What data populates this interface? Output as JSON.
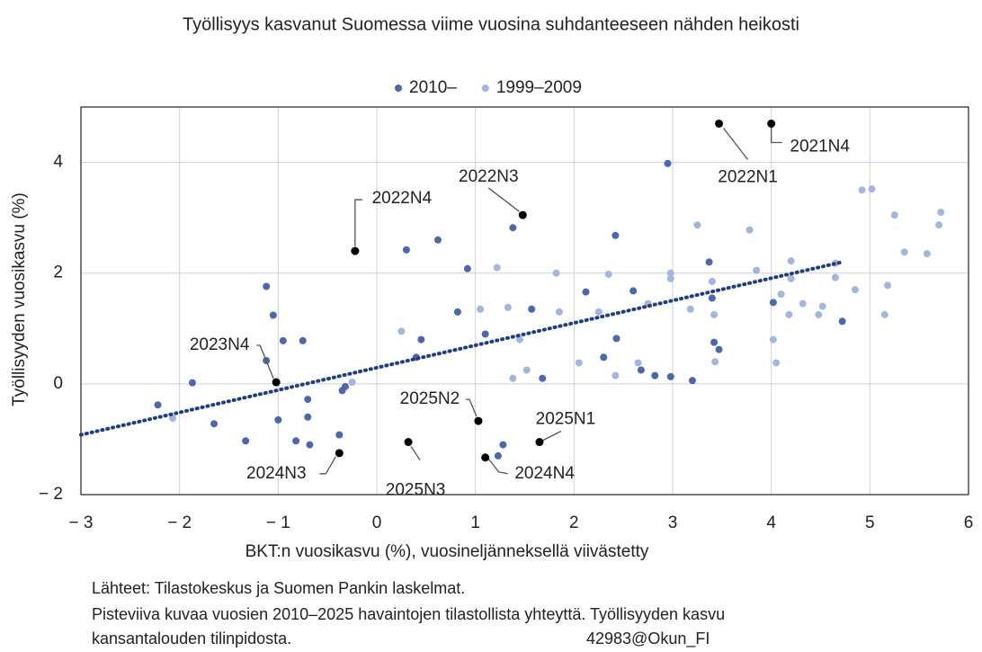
{
  "chart_data": {
    "type": "scatter",
    "title": "Työllisyys kasvanut Suomessa viime vuosina suhdanteeseen nähden heikosti",
    "xlabel": "BKT:n vuosikasvu (%), vuosineljänneksellä viivästetty",
    "ylabel": "Työllisyyden vuosikasvu (%)",
    "xlim": [
      -3,
      6
    ],
    "ylim": [
      -2,
      5
    ],
    "xticks": [
      {
        "value": -3,
        "label": "− 3"
      },
      {
        "value": -2,
        "label": "− 2"
      },
      {
        "value": -1,
        "label": "− 1"
      },
      0,
      1,
      2,
      3,
      4,
      5,
      6
    ],
    "yticks": [
      {
        "value": -2,
        "label": "− 2"
      },
      0,
      2,
      4
    ],
    "grid": true,
    "legend": "top",
    "series": [
      {
        "name": "2010–",
        "color": "#4d68aa",
        "x": [
          -2.22,
          -1.87,
          -1.65,
          -1.33,
          -1.12,
          -1.12,
          -1.05,
          -1.0,
          -0.95,
          -0.82,
          -0.75,
          -0.7,
          -0.7,
          -0.68,
          -0.38,
          -0.35,
          -0.32,
          0.3,
          0.4,
          0.45,
          0.62,
          0.82,
          0.92,
          1.1,
          1.23,
          1.28,
          1.38,
          1.57,
          1.68,
          2.12,
          2.3,
          2.42,
          2.43,
          2.6,
          2.68,
          2.82,
          2.95,
          2.98,
          3.2,
          3.37,
          3.4,
          3.42,
          3.47,
          4.02,
          4.72
        ],
        "values": [
          -0.38,
          0.02,
          -0.72,
          -1.03,
          1.76,
          0.42,
          1.24,
          -0.65,
          0.78,
          -1.03,
          0.78,
          -0.28,
          -0.6,
          -1.1,
          -0.92,
          -0.12,
          -0.05,
          2.42,
          0.48,
          0.8,
          2.6,
          1.3,
          2.08,
          0.9,
          -1.3,
          -1.1,
          2.82,
          1.35,
          0.1,
          1.66,
          0.48,
          2.68,
          0.82,
          1.68,
          0.25,
          0.15,
          3.98,
          0.13,
          0.06,
          2.2,
          1.55,
          0.75,
          0.62,
          1.47,
          1.13
        ]
      },
      {
        "name": "1999–2009",
        "color": "#a3b6de",
        "x": [
          -2.07,
          -0.25,
          0.25,
          1.05,
          1.22,
          1.33,
          1.45,
          1.38,
          1.52,
          1.82,
          1.85,
          2.05,
          2.25,
          2.35,
          2.42,
          2.65,
          2.75,
          2.98,
          2.98,
          3.25,
          3.18,
          3.4,
          3.42,
          3.43,
          3.78,
          3.85,
          4.02,
          4.05,
          4.1,
          4.18,
          4.2,
          4.2,
          4.32,
          4.48,
          4.52,
          4.65,
          4.65,
          4.85,
          4.92,
          5.02,
          5.15,
          5.18,
          5.25,
          5.35,
          5.58,
          5.7,
          5.72
        ],
        "values": [
          -0.62,
          0.03,
          0.95,
          1.35,
          2.1,
          1.38,
          0.8,
          0.1,
          0.25,
          2.0,
          1.3,
          0.38,
          1.3,
          1.98,
          0.15,
          0.38,
          1.45,
          1.9,
          2.0,
          2.87,
          1.35,
          1.85,
          1.25,
          0.4,
          2.78,
          2.05,
          0.8,
          0.38,
          1.62,
          1.25,
          2.22,
          1.9,
          1.45,
          1.25,
          1.4,
          2.18,
          1.92,
          1.7,
          3.5,
          3.52,
          1.25,
          1.78,
          3.05,
          2.38,
          2.35,
          2.87,
          3.1
        ]
      }
    ],
    "highlighted": {
      "color": "#000000",
      "labels": [
        "2021N4",
        "2022N1",
        "2022N3",
        "2022N4",
        "2023N4",
        "2024N3",
        "2025N3",
        "2024N4",
        "2025N2",
        "2025N1"
      ],
      "x": [
        4.0,
        3.47,
        1.48,
        -0.22,
        -1.02,
        -0.38,
        0.32,
        1.1,
        1.03,
        1.65
      ],
      "values": [
        4.7,
        4.7,
        3.05,
        2.4,
        0.03,
        -1.25,
        -1.05,
        -1.33,
        -0.67,
        -1.05
      ]
    },
    "trendline": {
      "color": "#1f3d7f",
      "x": [
        -3,
        4.72
      ],
      "values": [
        -0.92,
        2.2
      ]
    }
  },
  "notes": [
    "Lähteet: Tilastokeskus ja Suomen Pankin laskelmat.",
    "Pisteviiva kuvaa vuosien 2010–2025 havaintojen tilastollista yhteyttä. Työllisyyden kasvu",
    "kansantalouden tilinpidosta."
  ],
  "signature": "42983@Okun_FI"
}
